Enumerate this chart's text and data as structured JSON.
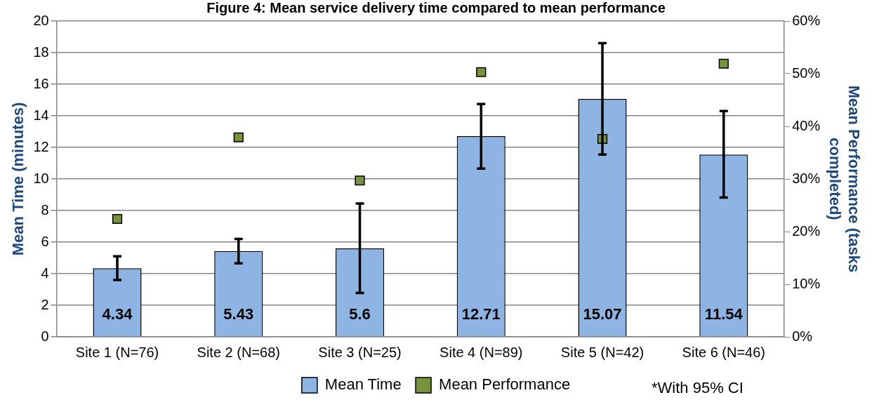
{
  "chart_data": {
    "type": "bar",
    "title": "Figure 4: Mean service delivery time compared to mean performance",
    "categories": [
      "Site 1 (N=76)",
      "Site 2 (N=68)",
      "Site 3 (N=25)",
      "Site 4 (N=89)",
      "Site 5 (N=42)",
      "Site 6 (N=46)"
    ],
    "ylabel": "Mean Time (minutes)",
    "y2label": "Mean Performance (tasks completed)",
    "series": [
      {
        "name": "Mean Time",
        "color": "#8eb4e3",
        "values": [
          4.34,
          5.43,
          5.6,
          12.71,
          15.07,
          11.54
        ],
        "value_labels": [
          "4.34",
          "5.43",
          "5.6",
          "12.71",
          "15.07",
          "11.54"
        ],
        "errors": [
          [
            3.6,
            5.1
          ],
          [
            4.66,
            6.2
          ],
          [
            2.78,
            8.45
          ],
          [
            10.66,
            14.75
          ],
          [
            11.54,
            18.6
          ],
          [
            8.82,
            14.3
          ]
        ]
      },
      {
        "name": "Mean Performance",
        "type": "scatter",
        "axis": "y2",
        "color": "#77933c",
        "values": [
          22.4,
          37.9,
          29.7,
          50.3,
          37.6,
          51.9
        ]
      }
    ],
    "ylim": [
      0,
      20
    ],
    "yticks": [
      0,
      2,
      4,
      6,
      8,
      10,
      12,
      14,
      16,
      18,
      20
    ],
    "y2lim": [
      0,
      60
    ],
    "y2ticks": [
      {
        "value": 0,
        "label": "0%"
      },
      {
        "value": 10,
        "label": "10%"
      },
      {
        "value": 20,
        "label": "20%"
      },
      {
        "value": 30,
        "label": "30%"
      },
      {
        "value": 40,
        "label": "40%"
      },
      {
        "value": 50,
        "label": "50%"
      },
      {
        "value": 60,
        "label": "60%"
      }
    ],
    "grid": "y",
    "legend": "bottom",
    "marker": "square",
    "annotations": [
      "*With 95% CI"
    ]
  }
}
